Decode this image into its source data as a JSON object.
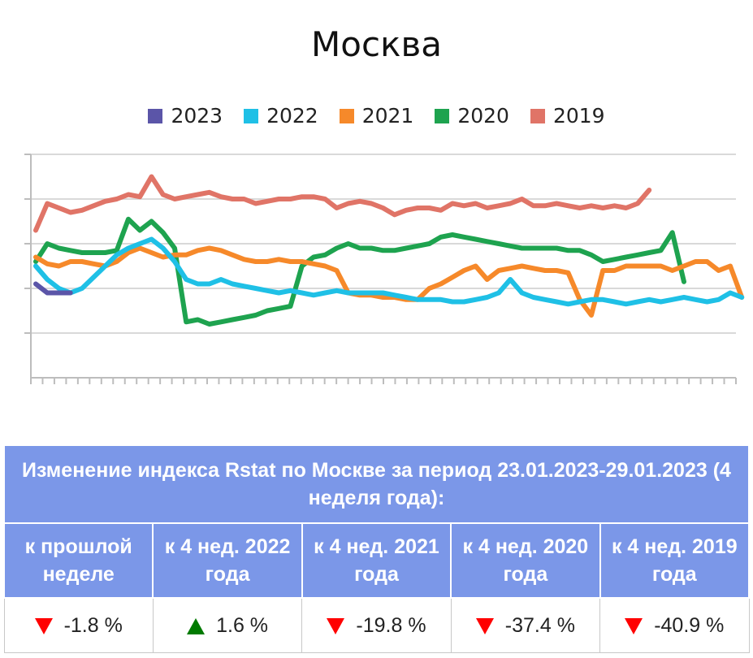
{
  "chart_data": {
    "type": "line",
    "title": "Москва",
    "grid": true,
    "legend": "top",
    "ylim": [
      0,
      100
    ],
    "series": [
      {
        "name": "2023",
        "color": "#5b55a8",
        "values": [
          42,
          38,
          38,
          38
        ]
      },
      {
        "name": "2022",
        "color": "#1fc0e6",
        "values": [
          50,
          44,
          40,
          38,
          40,
          45,
          50,
          55,
          58,
          60,
          62,
          58,
          52,
          44,
          42,
          42,
          44,
          42,
          41,
          40,
          39,
          38,
          39,
          38,
          37,
          38,
          39,
          38,
          38,
          38,
          38,
          37,
          36,
          35,
          35,
          35,
          34,
          34,
          35,
          36,
          38,
          44,
          38,
          36,
          35,
          34,
          33,
          34,
          35,
          35,
          34,
          33,
          34,
          35,
          34,
          35,
          36,
          35,
          34,
          35,
          38,
          36
        ]
      },
      {
        "name": "2021",
        "color": "#f6892a",
        "values": [
          54,
          51,
          50,
          52,
          52,
          51,
          50,
          52,
          56,
          58,
          56,
          54,
          55,
          55,
          57,
          58,
          57,
          55,
          53,
          52,
          52,
          53,
          52,
          52,
          51,
          50,
          48,
          38,
          37,
          37,
          36,
          36,
          35,
          35,
          40,
          42,
          45,
          48,
          50,
          44,
          48,
          49,
          50,
          49,
          48,
          48,
          47,
          35,
          28,
          48,
          48,
          50,
          50,
          50,
          50,
          48,
          50,
          52,
          52,
          48,
          50,
          36
        ]
      },
      {
        "name": "2020",
        "color": "#1ea34f",
        "values": [
          52,
          60,
          58,
          57,
          56,
          56,
          56,
          57,
          71,
          66,
          70,
          65,
          58,
          25,
          26,
          24,
          25,
          26,
          27,
          28,
          30,
          31,
          32,
          50,
          54,
          55,
          58,
          60,
          58,
          58,
          57,
          57,
          58,
          59,
          60,
          63,
          64,
          63,
          62,
          61,
          60,
          59,
          58,
          58,
          58,
          58,
          57,
          57,
          55,
          52,
          53,
          54,
          55,
          56,
          57,
          65,
          43
        ]
      },
      {
        "name": "2019",
        "color": "#e07467",
        "values": [
          66,
          78,
          76,
          74,
          75,
          77,
          79,
          80,
          82,
          81,
          90,
          82,
          80,
          81,
          82,
          83,
          81,
          80,
          80,
          78,
          79,
          80,
          80,
          81,
          81,
          80,
          76,
          78,
          79,
          78,
          76,
          73,
          75,
          76,
          76,
          75,
          78,
          77,
          78,
          76,
          77,
          78,
          80,
          77,
          77,
          78,
          77,
          76,
          77,
          76,
          77,
          76,
          78,
          84
        ]
      }
    ]
  },
  "table": {
    "header": "Изменение индекса Rstat по Москве за период 23.01.2023-29.01.2023 (4 неделя года):",
    "columns": [
      {
        "label": "к прошлой неделе",
        "value": "-1.8 %",
        "direction": "down"
      },
      {
        "label": "к 4 нед. 2022 года",
        "value": "1.6 %",
        "direction": "up"
      },
      {
        "label": "к 4 нед. 2021 года",
        "value": "-19.8 %",
        "direction": "down"
      },
      {
        "label": "к 4 нед. 2020 года",
        "value": "-37.4 %",
        "direction": "down"
      },
      {
        "label": "к 4 нед. 2019 года",
        "value": "-40.9 %",
        "direction": "down"
      }
    ]
  }
}
